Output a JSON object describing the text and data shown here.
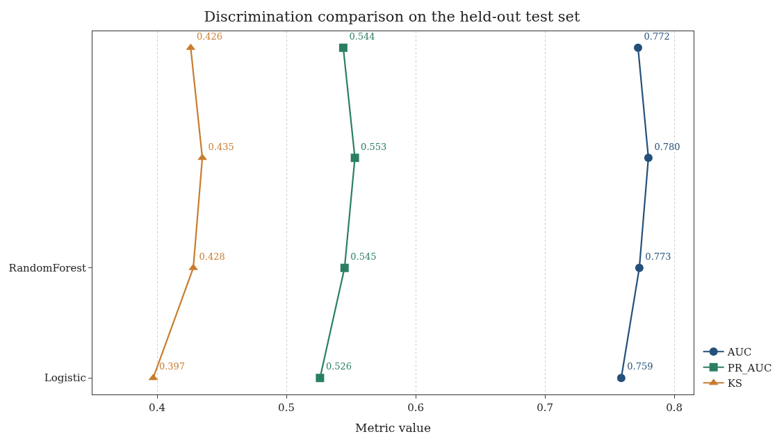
{
  "chart_data": {
    "type": "line",
    "title": "Discrimination comparison on the held-out test set",
    "xlabel": "Metric value",
    "orientation": "horizontal",
    "categories": [
      null,
      null,
      "RandomForest",
      "Logistic"
    ],
    "series": [
      {
        "name": "AUC",
        "color": "#24507a",
        "marker": "circle",
        "values": [
          0.772,
          0.78,
          0.773,
          0.759
        ],
        "value_labels": [
          "0.772",
          "0.780",
          "0.773",
          "0.759"
        ]
      },
      {
        "name": "PR_AUC",
        "color": "#2a7f62",
        "marker": "square",
        "values": [
          0.544,
          0.553,
          0.545,
          0.526
        ],
        "value_labels": [
          "0.544",
          "0.553",
          "0.545",
          "0.526"
        ]
      },
      {
        "name": "KS",
        "color": "#c97c2e",
        "marker": "triangle",
        "values": [
          0.426,
          0.435,
          0.428,
          0.397
        ],
        "value_labels": [
          "0.426",
          "0.435",
          "0.428",
          "0.397"
        ]
      }
    ],
    "xlim": [
      0.35,
      0.815
    ],
    "xticks": [
      0.4,
      0.5,
      0.6,
      0.7,
      0.8
    ],
    "grid": "x",
    "legend": "bottom right",
    "line_style": "solid"
  }
}
